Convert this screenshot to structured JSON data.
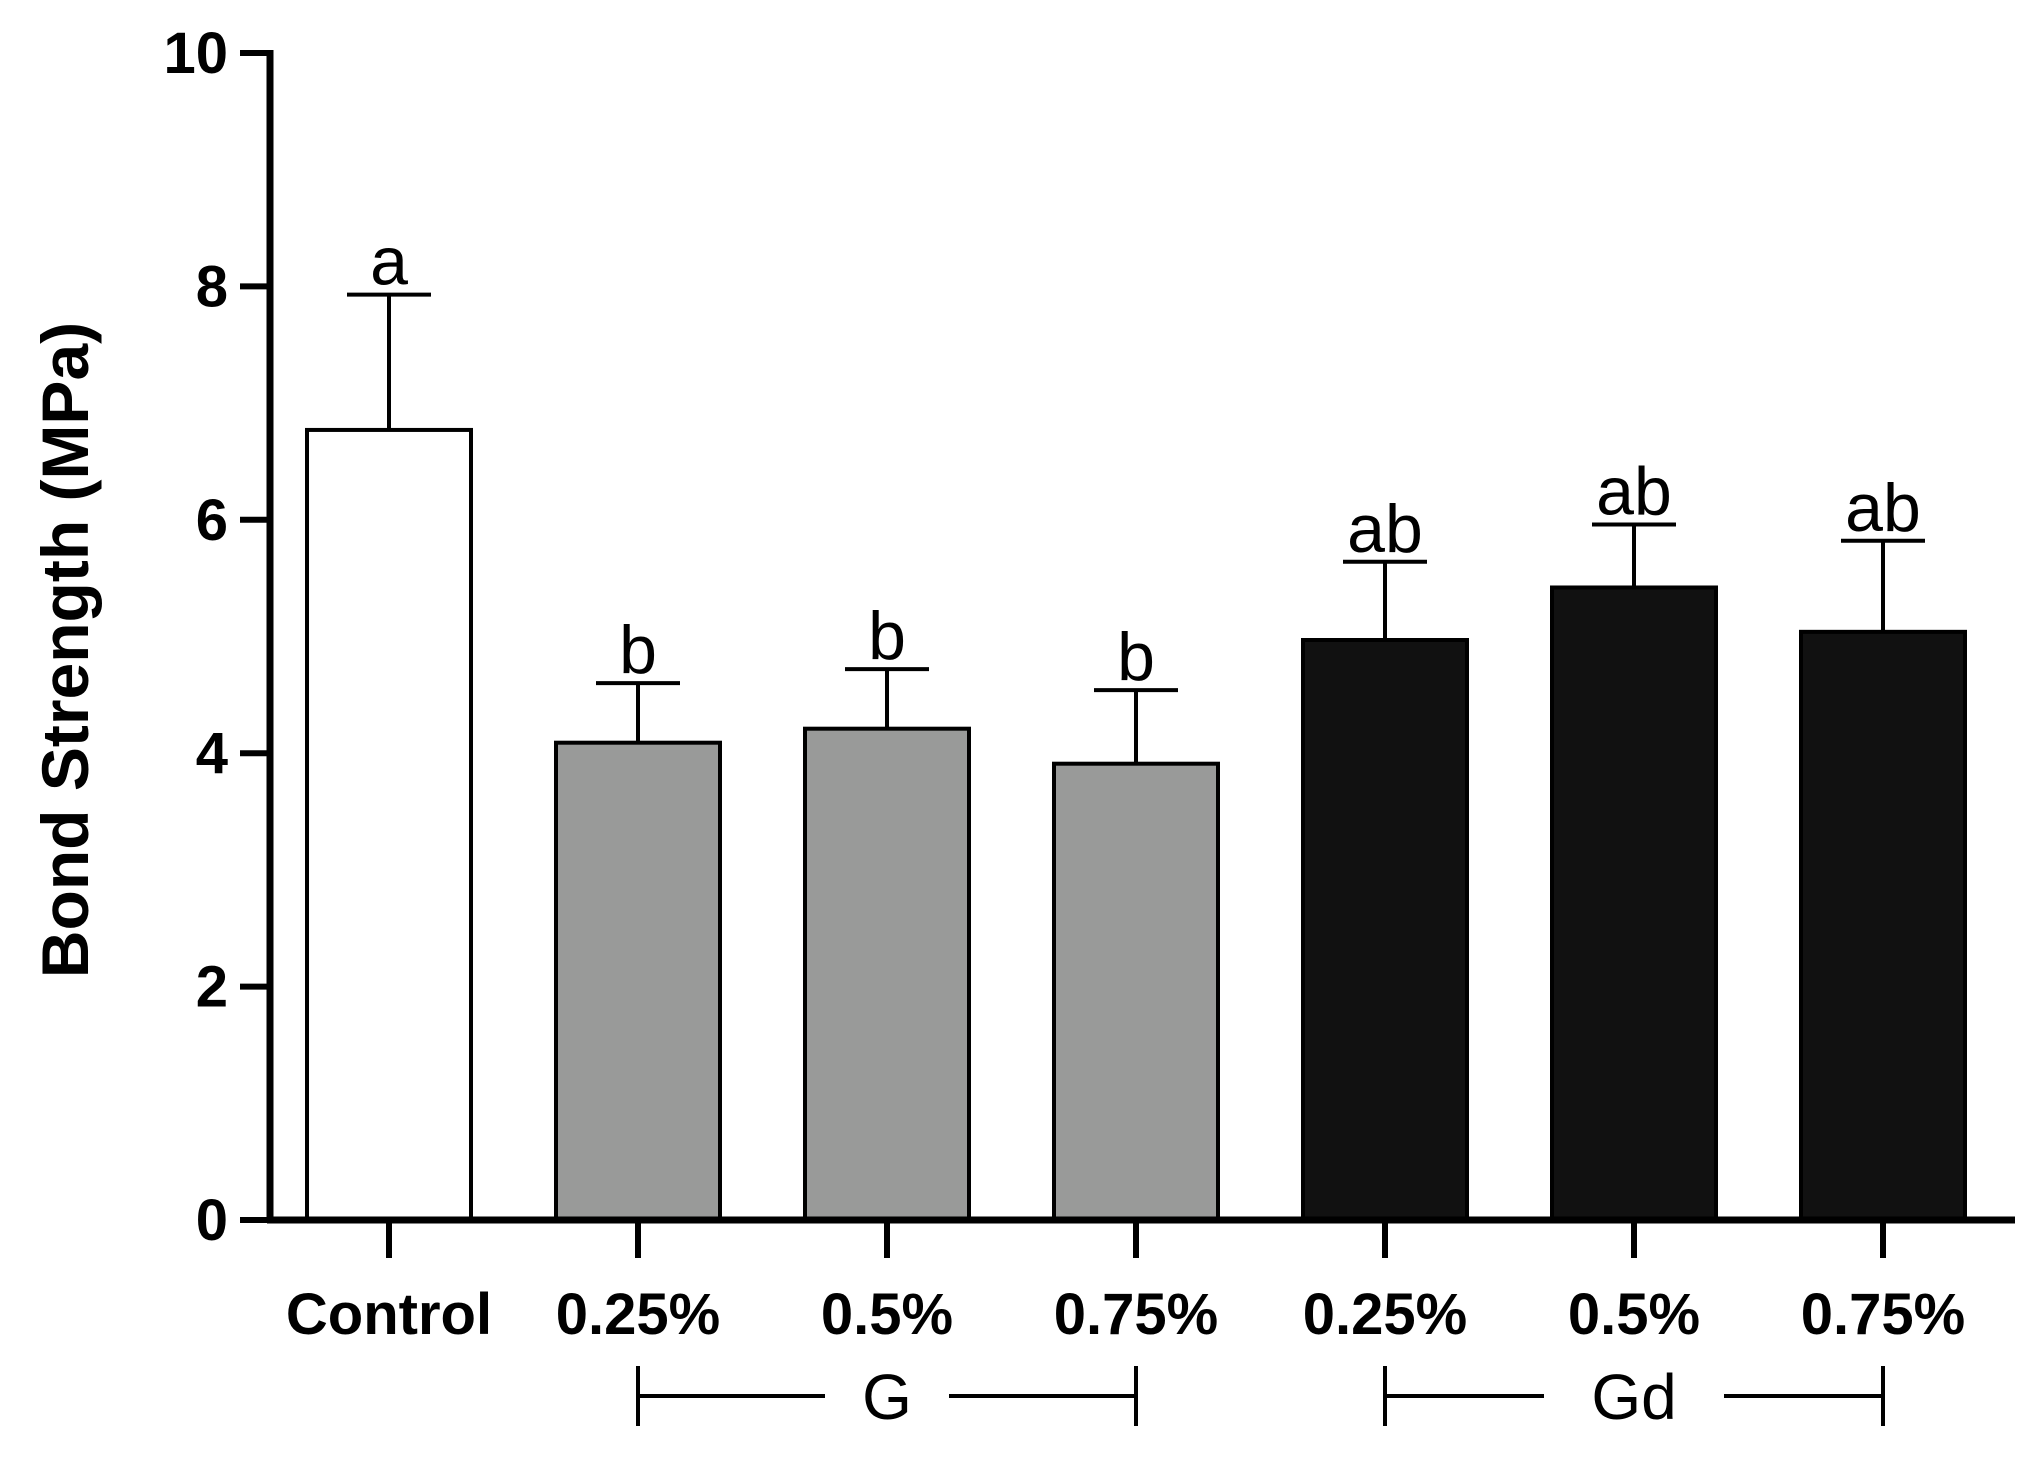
{
  "chart_data": {
    "type": "bar",
    "title": "",
    "xlabel": "",
    "ylabel": "Bond Strength (MPa)",
    "ylim": [
      0,
      10
    ],
    "yticks": [
      0,
      2,
      4,
      6,
      8,
      10
    ],
    "ytick_labels": [
      "0",
      "2",
      "4",
      "6",
      "8",
      "10"
    ],
    "categories": [
      "Control",
      "0.25%",
      "0.5%",
      "0.75%",
      "0.25%",
      "0.5%",
      "0.75%"
    ],
    "values": [
      6.77,
      4.09,
      4.21,
      3.91,
      4.97,
      5.42,
      5.04
    ],
    "errors": [
      1.16,
      0.51,
      0.51,
      0.63,
      0.67,
      0.54,
      0.78
    ],
    "significance": [
      "a",
      "b",
      "b",
      "b",
      "ab",
      "ab",
      "ab"
    ],
    "fills": [
      "#ffffff",
      "#999a99",
      "#999a99",
      "#999a99",
      "#111111",
      "#111111",
      "#111111"
    ],
    "groups": [
      {
        "label": "G",
        "from_index": 1,
        "to_index": 3
      },
      {
        "label": "Gd",
        "from_index": 4,
        "to_index": 6
      }
    ],
    "grid": false,
    "legend": "none"
  }
}
